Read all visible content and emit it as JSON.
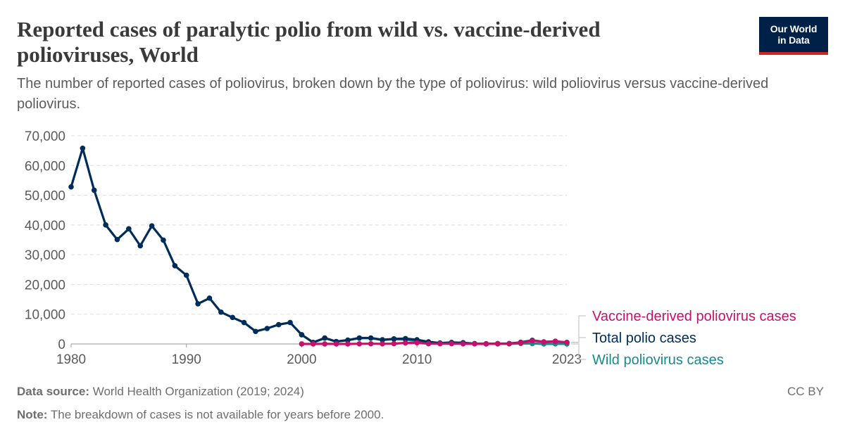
{
  "header": {
    "title": "Reported cases of paralytic polio from wild vs. vaccine-derived polioviruses, World",
    "subtitle": "The number of reported cases of poliovirus, broken down by the type of poliovirus: wild poliovirus versus vaccine-derived poliovirus."
  },
  "logo": {
    "line1": "Our World",
    "line2": "in Data",
    "bg_color": "#002147",
    "accent_color": "#ce261e"
  },
  "footer": {
    "source_label": "Data source:",
    "source_text": "World Health Organization (2019; 2024)",
    "note_label": "Note:",
    "note_text": "The breakdown of cases is not available for years before 2000.",
    "license": "CC BY"
  },
  "chart_data": {
    "type": "line",
    "title": "",
    "xlabel": "",
    "ylabel": "",
    "xlim": [
      1980,
      2023
    ],
    "ylim": [
      0,
      70000
    ],
    "x_ticks": [
      1980,
      1990,
      2000,
      2010,
      2023
    ],
    "y_ticks": [
      0,
      10000,
      20000,
      30000,
      40000,
      50000,
      60000,
      70000
    ],
    "y_tick_labels": [
      "0",
      "10,000",
      "20,000",
      "30,000",
      "40,000",
      "50,000",
      "60,000",
      "70,000"
    ],
    "grid": "horizontal dashed",
    "legend_placement": "right (line-end labels)",
    "series": [
      {
        "name": "Vaccine-derived poliovirus cases",
        "color": "#c8106a",
        "points": [
          [
            2000,
            7
          ],
          [
            2001,
            5
          ],
          [
            2002,
            20
          ],
          [
            2003,
            3
          ],
          [
            2004,
            7
          ],
          [
            2005,
            50
          ],
          [
            2006,
            60
          ],
          [
            2007,
            50
          ],
          [
            2008,
            100
          ],
          [
            2009,
            350
          ],
          [
            2010,
            400
          ],
          [
            2011,
            70
          ],
          [
            2012,
            70
          ],
          [
            2013,
            100
          ],
          [
            2014,
            55
          ],
          [
            2015,
            30
          ],
          [
            2016,
            5
          ],
          [
            2017,
            96
          ],
          [
            2018,
            105
          ],
          [
            2019,
            370
          ],
          [
            2020,
            1080
          ],
          [
            2021,
            680
          ],
          [
            2022,
            880
          ],
          [
            2023,
            520
          ]
        ]
      },
      {
        "name": "Total polio cases",
        "color": "#002c5a",
        "points": [
          [
            1980,
            52800
          ],
          [
            1981,
            65800
          ],
          [
            1982,
            51700
          ],
          [
            1983,
            40000
          ],
          [
            1984,
            35100
          ],
          [
            1985,
            38700
          ],
          [
            1986,
            33000
          ],
          [
            1987,
            39700
          ],
          [
            1988,
            34900
          ],
          [
            1989,
            26300
          ],
          [
            1990,
            23100
          ],
          [
            1991,
            13500
          ],
          [
            1992,
            15400
          ],
          [
            1993,
            10700
          ],
          [
            1994,
            8900
          ],
          [
            1995,
            7200
          ],
          [
            1996,
            4200
          ],
          [
            1997,
            5200
          ],
          [
            1998,
            6500
          ],
          [
            1999,
            7200
          ],
          [
            2000,
            3100
          ],
          [
            2001,
            500
          ],
          [
            2002,
            2000
          ],
          [
            2003,
            800
          ],
          [
            2004,
            1300
          ],
          [
            2005,
            2000
          ],
          [
            2006,
            2000
          ],
          [
            2007,
            1400
          ],
          [
            2008,
            1700
          ],
          [
            2009,
            1800
          ],
          [
            2010,
            1400
          ],
          [
            2011,
            700
          ],
          [
            2012,
            300
          ],
          [
            2013,
            500
          ],
          [
            2014,
            400
          ],
          [
            2015,
            100
          ],
          [
            2016,
            40
          ],
          [
            2017,
            120
          ],
          [
            2018,
            140
          ],
          [
            2019,
            550
          ],
          [
            2020,
            1220
          ],
          [
            2021,
            690
          ],
          [
            2022,
            910
          ],
          [
            2023,
            530
          ]
        ]
      },
      {
        "name": "Wild poliovirus cases",
        "color": "#158a8f",
        "points": [
          [
            2000,
            3100
          ],
          [
            2001,
            490
          ],
          [
            2002,
            1960
          ],
          [
            2003,
            780
          ],
          [
            2004,
            1250
          ],
          [
            2005,
            1950
          ],
          [
            2006,
            1940
          ],
          [
            2007,
            1330
          ],
          [
            2008,
            1600
          ],
          [
            2009,
            1450
          ],
          [
            2010,
            1000
          ],
          [
            2011,
            650
          ],
          [
            2012,
            225
          ],
          [
            2013,
            400
          ],
          [
            2014,
            345
          ],
          [
            2015,
            70
          ],
          [
            2016,
            35
          ],
          [
            2017,
            22
          ],
          [
            2018,
            33
          ],
          [
            2019,
            176
          ],
          [
            2020,
            140
          ],
          [
            2021,
            6
          ],
          [
            2022,
            30
          ],
          [
            2023,
            12
          ]
        ]
      }
    ]
  }
}
